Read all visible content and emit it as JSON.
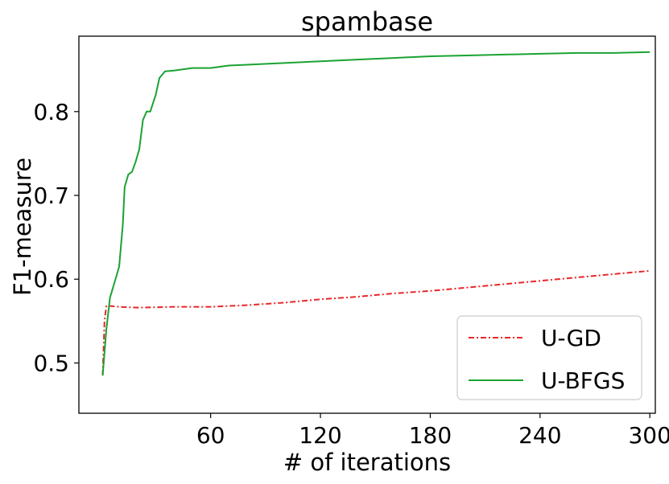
{
  "chart_data": {
    "type": "line",
    "title": "spambase",
    "xlabel": "# of iterations",
    "ylabel": "F1-measure",
    "xlim": [
      -12,
      303
    ],
    "ylim": [
      0.44,
      0.89
    ],
    "xticks": [
      60,
      120,
      180,
      240,
      300
    ],
    "xtick_labels": [
      "60",
      "120",
      "180",
      "240",
      "300"
    ],
    "yticks": [
      0.5,
      0.6,
      0.7,
      0.8
    ],
    "ytick_labels": [
      "0.5",
      "0.6",
      "0.7",
      "0.8"
    ],
    "grid": false,
    "legend_position": "bottom-right",
    "series": [
      {
        "name": "U-GD",
        "color": "#e8272a",
        "style": "dashdot",
        "x": [
          1,
          2,
          3,
          5,
          10,
          20,
          40,
          60,
          80,
          100,
          120,
          140,
          160,
          180,
          200,
          220,
          240,
          260,
          280,
          300
        ],
        "y": [
          0.485,
          0.55,
          0.568,
          0.568,
          0.567,
          0.566,
          0.567,
          0.567,
          0.569,
          0.572,
          0.576,
          0.579,
          0.583,
          0.586,
          0.59,
          0.594,
          0.598,
          0.602,
          0.606,
          0.61
        ]
      },
      {
        "name": "U-BFGS",
        "color": "#1aa333",
        "style": "solid",
        "x": [
          1,
          3,
          5,
          8,
          10,
          12,
          13,
          15,
          17,
          19,
          21,
          23,
          25,
          27,
          30,
          32,
          35,
          40,
          50,
          60,
          70,
          80,
          100,
          120,
          140,
          160,
          180,
          200,
          220,
          240,
          260,
          280,
          300
        ],
        "y": [
          0.485,
          0.54,
          0.578,
          0.6,
          0.615,
          0.665,
          0.71,
          0.725,
          0.728,
          0.74,
          0.755,
          0.79,
          0.8,
          0.8,
          0.82,
          0.84,
          0.848,
          0.849,
          0.852,
          0.852,
          0.855,
          0.856,
          0.858,
          0.86,
          0.862,
          0.864,
          0.866,
          0.867,
          0.868,
          0.869,
          0.87,
          0.87,
          0.871
        ]
      }
    ]
  }
}
